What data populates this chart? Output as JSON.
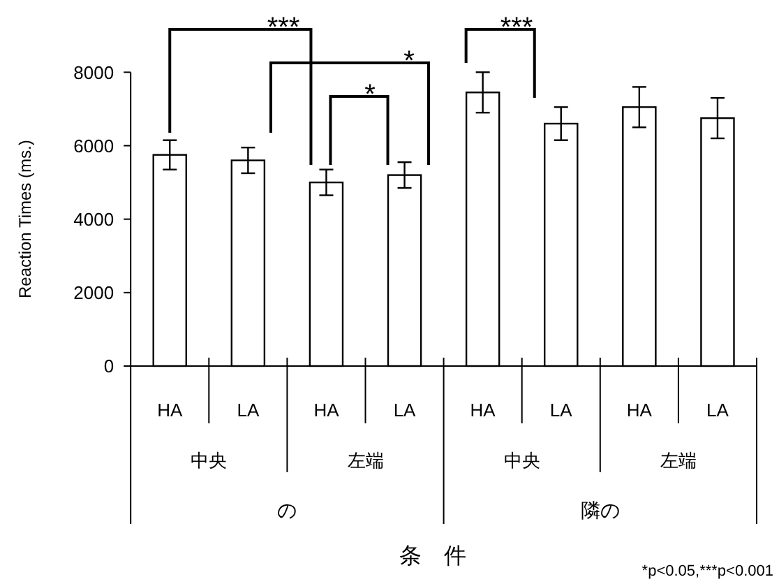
{
  "chart_data": {
    "type": "bar",
    "ylabel": "Reaction Times (ms.)",
    "categories": [
      "HA",
      "LA",
      "HA",
      "LA",
      "HA",
      "LA",
      "HA",
      "LA"
    ],
    "values": [
      5750,
      5600,
      5000,
      5200,
      7450,
      6600,
      7050,
      6750
    ],
    "errors": [
      400,
      350,
      350,
      350,
      550,
      450,
      550,
      550
    ],
    "color": "#ffffff",
    "ylim": [
      0,
      8000
    ],
    "yticks": [
      0,
      2000,
      4000,
      6000,
      8000
    ],
    "grid": false,
    "annotations": [
      "中央",
      "左端",
      "中央",
      "左端",
      "の",
      "隣の",
      "***",
      "*",
      "*",
      "***",
      "*p<0.05,***p<0.001",
      "条　件"
    ]
  }
}
